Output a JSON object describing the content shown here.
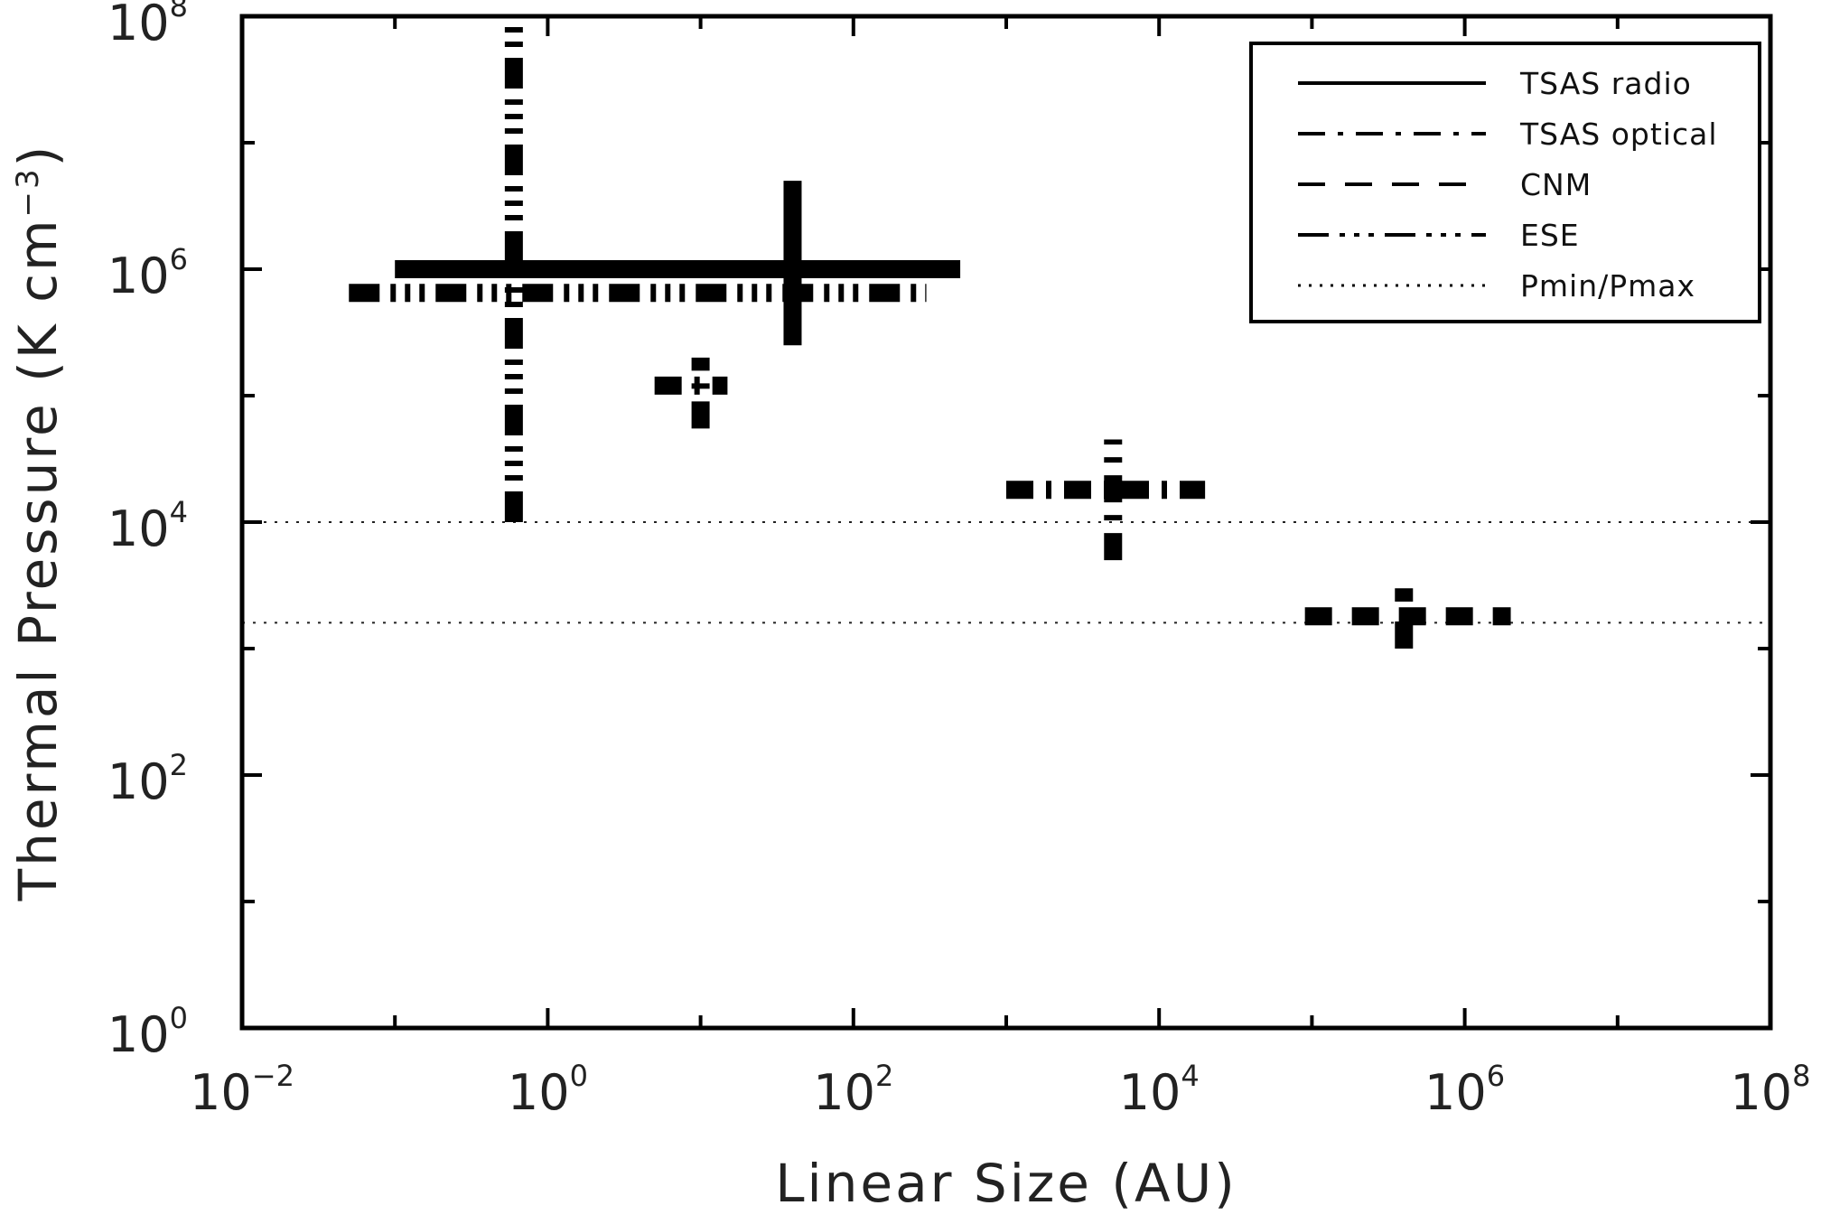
{
  "chart_data": {
    "type": "scatter",
    "xlabel": "Linear Size (AU)",
    "ylabel_main": "Thermal Pressure (K cm",
    "ylabel_sup": "−3",
    "ylabel_close": ")",
    "xscale": "log",
    "yscale": "log",
    "xlim": [
      0.01,
      100000000
    ],
    "ylim": [
      1,
      100000000
    ],
    "x_ticks": [
      {
        "base": "10",
        "exp": "−2",
        "value": 0.01
      },
      {
        "base": "10",
        "exp": "0",
        "value": 1
      },
      {
        "base": "10",
        "exp": "2",
        "value": 100
      },
      {
        "base": "10",
        "exp": "4",
        "value": 10000
      },
      {
        "base": "10",
        "exp": "6",
        "value": 1000000
      },
      {
        "base": "10",
        "exp": "8",
        "value": 100000000
      }
    ],
    "y_ticks": [
      {
        "base": "10",
        "exp": "0",
        "value": 1
      },
      {
        "base": "10",
        "exp": "2",
        "value": 100
      },
      {
        "base": "10",
        "exp": "4",
        "value": 10000
      },
      {
        "base": "10",
        "exp": "6",
        "value": 1000000
      },
      {
        "base": "10",
        "exp": "8",
        "value": 100000000
      }
    ],
    "legend_position": "top-right",
    "legend": [
      {
        "label": "TSAS radio",
        "style": "solid"
      },
      {
        "label": "TSAS optical",
        "style": "dashdot"
      },
      {
        "label": "CNM",
        "style": "dashed"
      },
      {
        "label": "ESE",
        "style": "dashdotdotdot"
      },
      {
        "label": "Pmin/Pmax",
        "style": "dotted"
      }
    ],
    "hlines": [
      {
        "series": "Pmin/Pmax",
        "y": 10000
      },
      {
        "series": "Pmin/Pmax",
        "y": 1600
      }
    ],
    "crosses": [
      {
        "series": "TSAS radio",
        "x": 40,
        "y": 1000000,
        "x_range": [
          0.1,
          500
        ],
        "y_range": [
          250000,
          5000000
        ]
      },
      {
        "series": "ESE",
        "x": 0.6,
        "y": 650000,
        "x_range": [
          0.05,
          300
        ],
        "y_range": [
          10000,
          90000000
        ]
      },
      {
        "series": "TSAS optical",
        "x": 10,
        "y": 120000,
        "x_range": [
          5,
          15
        ],
        "y_range": [
          55000,
          200000
        ]
      },
      {
        "series": "TSAS optical",
        "x": 5000,
        "y": 18000,
        "x_range": [
          1000,
          20000
        ],
        "y_range": [
          5000,
          45000
        ]
      },
      {
        "series": "CNM",
        "x": 400000,
        "y": 1800,
        "x_range": [
          90000,
          2000000
        ],
        "y_range": [
          1000,
          3000
        ]
      }
    ]
  }
}
